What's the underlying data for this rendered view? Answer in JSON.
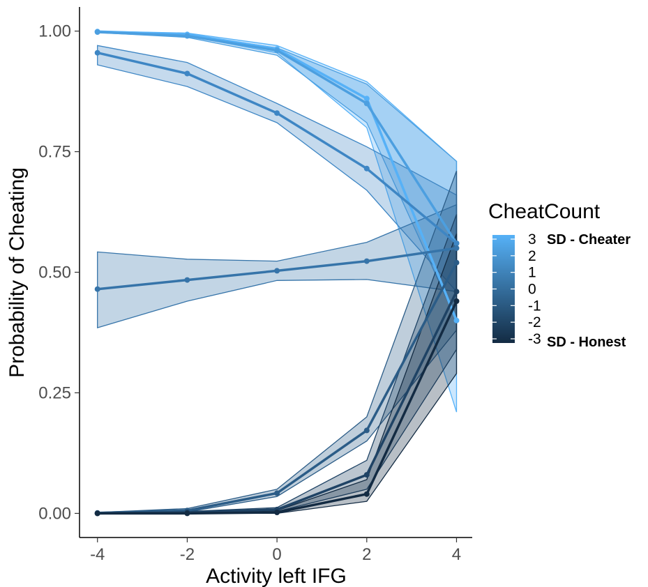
{
  "chart_data": {
    "type": "line",
    "xlabel": "Activity left IFG",
    "ylabel": "Probability of Cheating",
    "x": [
      -4,
      -2,
      0,
      2,
      4
    ],
    "xticks": [
      "-4",
      "-2",
      "0",
      "2",
      "4"
    ],
    "yticks": [
      "0.00",
      "0.25",
      "0.50",
      "0.75",
      "1.00"
    ],
    "xlim": [
      -4.4,
      4.35
    ],
    "ylim": [
      -0.05,
      1.05
    ],
    "grid": false,
    "legend": {
      "title": "CheatCount",
      "position": "right",
      "labels": [
        "3",
        "2",
        "1",
        "0",
        "-1",
        "-2",
        "-3"
      ],
      "top_annotation": "SD - Cheater",
      "bottom_annotation": "SD - Honest",
      "color_high": "#56B1F7",
      "color_low": "#132B43"
    },
    "series": [
      {
        "cheat_count": 3,
        "color": "#56B1F7",
        "x": [
          -4,
          -2,
          0,
          2,
          4
        ],
        "y": [
          0.999,
          0.993,
          0.963,
          0.86,
          0.4
        ],
        "lower": [
          0.998,
          0.99,
          0.955,
          0.8,
          0.21
        ],
        "upper": [
          1.0,
          0.996,
          0.97,
          0.895,
          0.73
        ]
      },
      {
        "cheat_count": 2,
        "color": "#4C9FE0",
        "x": [
          -4,
          -2,
          0,
          2,
          4
        ],
        "y": [
          0.998,
          0.99,
          0.96,
          0.85,
          0.56
        ],
        "lower": [
          0.997,
          0.987,
          0.95,
          0.81,
          0.4
        ],
        "upper": [
          0.999,
          0.993,
          0.965,
          0.89,
          0.73
        ]
      },
      {
        "cheat_count": 1,
        "color": "#3E86C4",
        "x": [
          -4,
          -2,
          0,
          2,
          4
        ],
        "y": [
          0.955,
          0.912,
          0.83,
          0.715,
          0.56
        ],
        "lower": [
          0.93,
          0.885,
          0.81,
          0.67,
          0.46
        ],
        "upper": [
          0.97,
          0.935,
          0.85,
          0.76,
          0.66
        ]
      },
      {
        "cheat_count": 0,
        "color": "#3674A9",
        "x": [
          -4,
          -2,
          0,
          2,
          4
        ],
        "y": [
          0.465,
          0.484,
          0.503,
          0.523,
          0.55
        ],
        "lower": [
          0.385,
          0.44,
          0.483,
          0.485,
          0.46
        ],
        "upper": [
          0.542,
          0.527,
          0.523,
          0.562,
          0.64
        ]
      },
      {
        "cheat_count": -1,
        "color": "#2B5C87",
        "x": [
          -4,
          -2,
          0,
          2,
          4
        ],
        "y": [
          0.001,
          0.006,
          0.042,
          0.172,
          0.52
        ],
        "lower": [
          0.0,
          0.003,
          0.035,
          0.15,
          0.38
        ],
        "upper": [
          0.002,
          0.01,
          0.05,
          0.2,
          0.71
        ]
      },
      {
        "cheat_count": -2,
        "color": "#1F4365",
        "x": [
          -4,
          -2,
          0,
          2,
          4
        ],
        "y": [
          0.0,
          0.002,
          0.008,
          0.08,
          0.46
        ],
        "lower": [
          0.0,
          0.0,
          0.004,
          0.05,
          0.34
        ],
        "upper": [
          0.001,
          0.004,
          0.012,
          0.11,
          0.62
        ]
      },
      {
        "cheat_count": -3,
        "color": "#132B43",
        "x": [
          -4,
          -2,
          0,
          2,
          4
        ],
        "y": [
          0.0,
          0.0,
          0.002,
          0.04,
          0.44
        ],
        "lower": [
          0.0,
          0.0,
          0.0,
          0.025,
          0.29
        ],
        "upper": [
          0.0005,
          0.001,
          0.006,
          0.07,
          0.58
        ]
      }
    ]
  }
}
